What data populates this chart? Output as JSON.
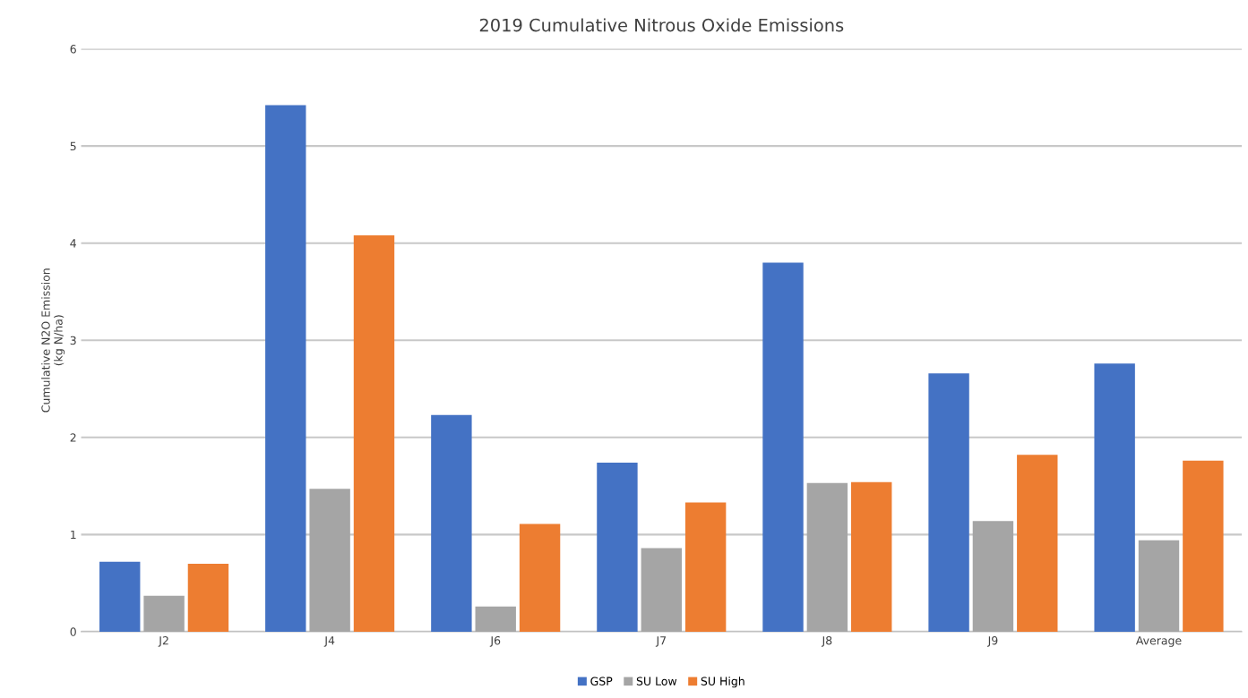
{
  "chart_data": {
    "type": "bar",
    "title": "2019 Cumulative Nitrous Oxide Emissions",
    "ylabel": "Cumulative N2O Emission\n(kg N/ha)",
    "categories": [
      "J2",
      "J4",
      "J6",
      "J7",
      "J8",
      "J9",
      "Average"
    ],
    "series": [
      {
        "name": "GSP",
        "color": "#4472c4",
        "values": [
          0.72,
          5.42,
          2.23,
          1.74,
          3.8,
          2.66,
          2.76
        ]
      },
      {
        "name": "SU Low",
        "color": "#a5a5a5",
        "values": [
          0.37,
          1.47,
          0.26,
          0.86,
          1.53,
          1.14,
          0.94
        ]
      },
      {
        "name": "SU High",
        "color": "#ed7d31",
        "values": [
          0.7,
          4.08,
          1.11,
          1.33,
          1.54,
          1.82,
          1.76
        ]
      }
    ],
    "ylim": [
      0,
      6
    ],
    "yticks": [
      0,
      1,
      2,
      3,
      4,
      5,
      6
    ],
    "grid": "y",
    "legend": "bottom"
  }
}
